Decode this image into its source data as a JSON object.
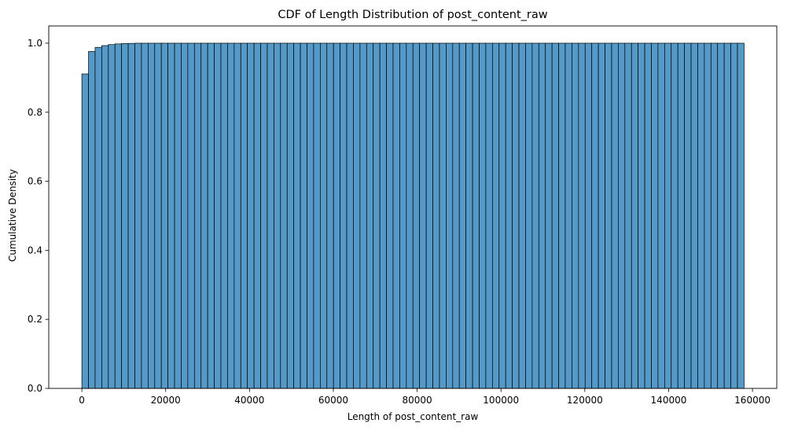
{
  "chart_data": {
    "type": "bar",
    "title": "CDF of Length Distribution of post_content_raw",
    "xlabel": "Length of post_content_raw",
    "ylabel": "Cumulative Density",
    "xlim": [
      -7900,
      165800
    ],
    "ylim": [
      0,
      1.05
    ],
    "grid": false,
    "legend": "none",
    "bar_color": "#5499c7",
    "edge_color": "#000000",
    "bin_start": 0,
    "bin_width": 1580,
    "bin_count": 100,
    "values": [
      0.911,
      0.976,
      0.988,
      0.993,
      0.996,
      0.998,
      0.999,
      0.9995,
      1.0,
      1.0,
      1.0,
      1.0,
      1.0,
      1.0,
      1.0,
      1.0,
      1.0,
      1.0,
      1.0,
      1.0,
      1.0,
      1.0,
      1.0,
      1.0,
      1.0,
      1.0,
      1.0,
      1.0,
      1.0,
      1.0,
      1.0,
      1.0,
      1.0,
      1.0,
      1.0,
      1.0,
      1.0,
      1.0,
      1.0,
      1.0,
      1.0,
      1.0,
      1.0,
      1.0,
      1.0,
      1.0,
      1.0,
      1.0,
      1.0,
      1.0,
      1.0,
      1.0,
      1.0,
      1.0,
      1.0,
      1.0,
      1.0,
      1.0,
      1.0,
      1.0,
      1.0,
      1.0,
      1.0,
      1.0,
      1.0,
      1.0,
      1.0,
      1.0,
      1.0,
      1.0,
      1.0,
      1.0,
      1.0,
      1.0,
      1.0,
      1.0,
      1.0,
      1.0,
      1.0,
      1.0,
      1.0,
      1.0,
      1.0,
      1.0,
      1.0,
      1.0,
      1.0,
      1.0,
      1.0,
      1.0,
      1.0,
      1.0,
      1.0,
      1.0,
      1.0,
      1.0,
      1.0,
      1.0,
      1.0,
      1.0
    ],
    "x_ticks": [
      0,
      20000,
      40000,
      60000,
      80000,
      100000,
      120000,
      140000,
      160000
    ],
    "x_tick_labels": [
      "0",
      "20000",
      "40000",
      "60000",
      "80000",
      "100000",
      "120000",
      "140000",
      "160000"
    ],
    "y_ticks": [
      0,
      0.2,
      0.4,
      0.6,
      0.8,
      1.0
    ],
    "y_tick_labels": [
      "0.0",
      "0.2",
      "0.4",
      "0.6",
      "0.8",
      "1.0"
    ]
  }
}
